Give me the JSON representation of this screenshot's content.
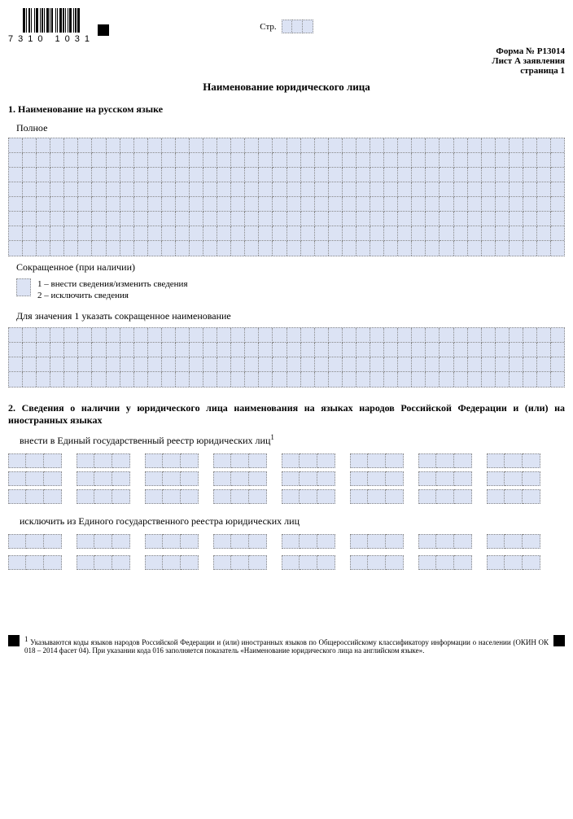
{
  "barcode_number": "7310 1031",
  "page_label": "Стр.",
  "page_cells": 3,
  "form_number": "Форма № Р13014",
  "sheet_label": "Лист А заявления",
  "page_number_label": "страница 1",
  "title": "Наименование юридического лица",
  "section1": {
    "heading": "1. Наименование на русском языке",
    "full_label": "Полное",
    "full_grid": {
      "rows": 8,
      "cols": 40
    },
    "short_label": "Сокращенное (при наличии)",
    "legend_box_cells": 1,
    "legend_line1": "1 – внести сведения/изменить сведения",
    "legend_line2": "2 – исключить сведения",
    "instruction": "Для значения 1 указать сокращенное наименование",
    "short_grid": {
      "rows": 4,
      "cols": 40
    }
  },
  "section2": {
    "heading": "2. Сведения о наличии у юридического лица наименования на языках народов Российской Федерации и (или) на иностранных языках",
    "include_label": "внести в Единый государственный реестр юридических лиц",
    "include_sup": "1",
    "include_groups": {
      "groups": 8,
      "rows_per_group": 3,
      "cells_per_row": 3
    },
    "exclude_label": "исключить из Единого государственного реестра юридических лиц",
    "exclude_groups": {
      "groups": 8,
      "rows_per_group": 2,
      "cells_per_row": 3
    }
  },
  "footnote": {
    "marker": "1",
    "text": "Указываются коды языков народов Российской Федерации и (или) иностранных языков по Общероссийскому классификатору информации о населении (ОКИН ОК 018 – 2014 фасет 04). При указании кода 016 заполняется показатель «Наименование юридического лица на английском языке»."
  },
  "colors": {
    "cell_bg": "#dce3f4",
    "cell_border": "#888888",
    "black": "#000000"
  }
}
